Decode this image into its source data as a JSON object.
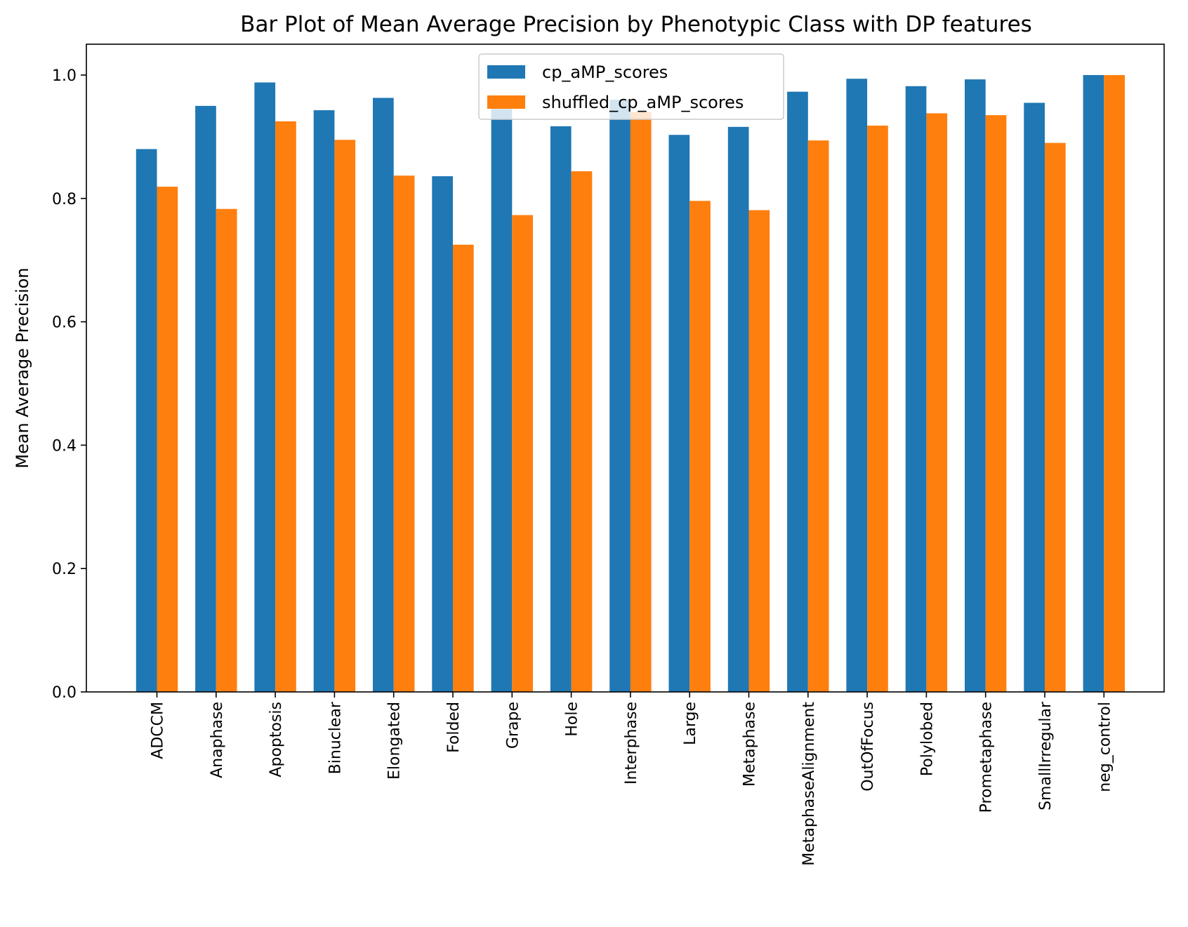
{
  "chart_data": {
    "type": "bar",
    "title": "Bar Plot of Mean Average Precision by Phenotypic Class with DP features",
    "xlabel": "",
    "ylabel": "Mean Average Precision",
    "ylim": [
      0,
      1.05
    ],
    "yticks": [
      "0.0",
      "0.2",
      "0.4",
      "0.6",
      "0.8",
      "1.0"
    ],
    "grid": false,
    "legend_position": "top-center",
    "categories": [
      "ADCCM",
      "Anaphase",
      "Apoptosis",
      "Binuclear",
      "Elongated",
      "Folded",
      "Grape",
      "Hole",
      "Interphase",
      "Large",
      "Metaphase",
      "MetaphaseAlignment",
      "OutOfFocus",
      "Polylobed",
      "Prometaphase",
      "SmallIrregular",
      "neg_control"
    ],
    "series": [
      {
        "name": "cp_aMP_scores",
        "color": "#1f77b4",
        "values": [
          0.88,
          0.95,
          0.988,
          0.943,
          0.963,
          0.836,
          0.945,
          0.917,
          0.96,
          0.903,
          0.916,
          0.973,
          0.994,
          0.982,
          0.993,
          0.955,
          1.0
        ]
      },
      {
        "name": "shuffled_cp_aMP_scores",
        "color": "#ff7f0e",
        "values": [
          0.819,
          0.783,
          0.925,
          0.895,
          0.837,
          0.725,
          0.773,
          0.844,
          0.94,
          0.796,
          0.781,
          0.894,
          0.918,
          0.938,
          0.935,
          0.89,
          1.0
        ]
      }
    ]
  }
}
